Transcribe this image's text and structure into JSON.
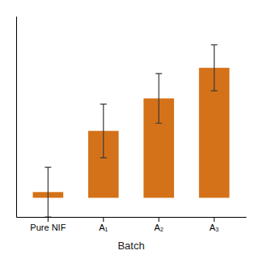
{
  "chart_data": {
    "type": "bar",
    "categories": [
      "Pure NIF",
      "A₁",
      "A₂",
      "A₃"
    ],
    "values": [
      3.0,
      35,
      52,
      68
    ],
    "errors": [
      13,
      14,
      13,
      12
    ],
    "color": "#D4721A",
    "xlabel": "Batch",
    "ylim": [
      -10,
      95
    ],
    "tick_labels": "x"
  }
}
